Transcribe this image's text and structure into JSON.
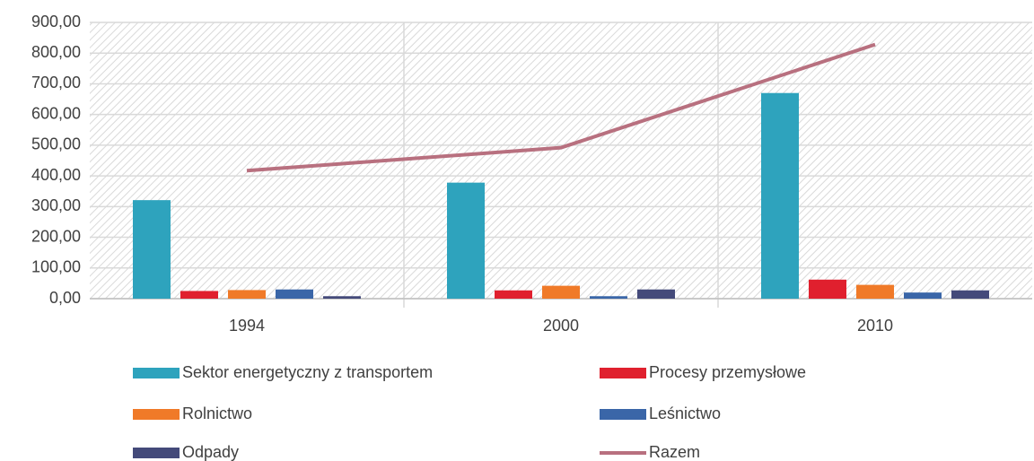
{
  "chart_data": {
    "type": "bar",
    "categories": [
      "1994",
      "2000",
      "2010"
    ],
    "series": [
      {
        "name": "Sektor energetyczny z transportem",
        "color": "#2ea3bd",
        "values": [
          321,
          378,
          670
        ]
      },
      {
        "name": "Procesy przemysłowe",
        "color": "#e0202e",
        "values": [
          25,
          27,
          62
        ]
      },
      {
        "name": "Rolnictwo",
        "color": "#f07a28",
        "values": [
          28,
          42,
          45
        ]
      },
      {
        "name": "Leśnictwo",
        "color": "#3a66a8",
        "values": [
          30,
          8,
          20
        ]
      },
      {
        "name": "Odpady",
        "color": "#444a7a",
        "values": [
          8,
          30,
          27
        ]
      },
      {
        "name": "Razem",
        "color": "#b8707f",
        "type": "line",
        "values": [
          417,
          492,
          828
        ]
      }
    ],
    "ylim": [
      0,
      900
    ],
    "yticks": [
      {
        "value": 0,
        "label": "0,00"
      },
      {
        "value": 100,
        "label": "100,00"
      },
      {
        "value": 200,
        "label": "200,00"
      },
      {
        "value": 300,
        "label": "300,00"
      },
      {
        "value": 400,
        "label": "400,00"
      },
      {
        "value": 500,
        "label": "500,00"
      },
      {
        "value": 600,
        "label": "600,00"
      },
      {
        "value": 700,
        "label": "700,00"
      },
      {
        "value": 800,
        "label": "800,00"
      },
      {
        "value": 900,
        "label": "900,00"
      }
    ],
    "grid": true
  }
}
